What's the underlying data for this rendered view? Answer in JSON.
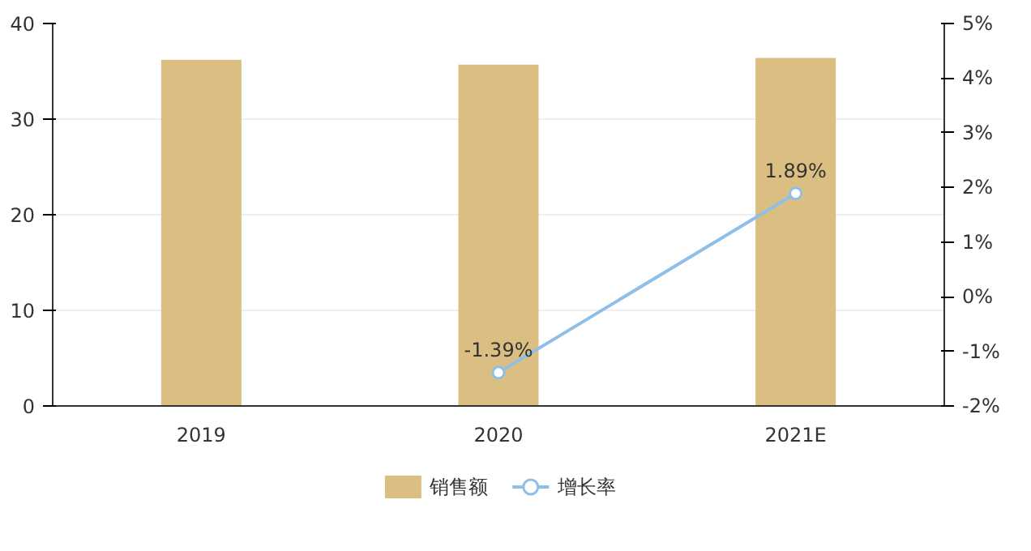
{
  "chart_data": {
    "type": "bar",
    "categories": [
      "2019",
      "2020",
      "2021E"
    ],
    "series": [
      {
        "name": "销售额",
        "color": "#dbbf82",
        "values": [
          36.2,
          35.7,
          36.4
        ]
      },
      {
        "name": "增长率",
        "type": "line",
        "axis": "y2",
        "color": "#8dbfe8",
        "marker": "circle",
        "values": [
          null,
          -1.39,
          1.89
        ],
        "value_labels": [
          null,
          "-1.39%",
          "1.89%"
        ]
      }
    ],
    "ylim": [
      0,
      40
    ],
    "yticks": [
      0,
      10,
      20,
      30,
      40
    ],
    "y2lim": [
      -2,
      5
    ],
    "y2ticks": [
      {
        "value": -2,
        "label": "-2%"
      },
      {
        "value": -1,
        "label": "-1%"
      },
      {
        "value": 0,
        "label": "0%"
      },
      {
        "value": 1,
        "label": "1%"
      },
      {
        "value": 2,
        "label": "2%"
      },
      {
        "value": 3,
        "label": "3%"
      },
      {
        "value": 4,
        "label": "4%"
      },
      {
        "value": 5,
        "label": "5%"
      }
    ],
    "grid": "y",
    "legend": "bottom"
  }
}
